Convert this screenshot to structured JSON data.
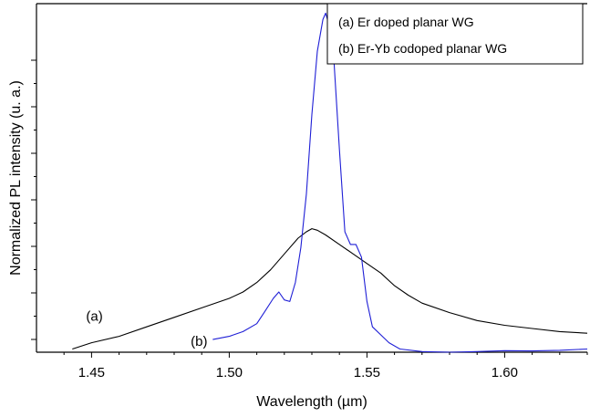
{
  "chart_data": {
    "type": "line",
    "title": "",
    "xlabel": "Wavelength (µm)",
    "ylabel": "Normalized PL intensity (u. a.)",
    "xlim": [
      1.43,
      1.63
    ],
    "ylim": [
      0,
      1.1
    ],
    "x_ticks": [
      1.45,
      1.5,
      1.55,
      1.6
    ],
    "x_tick_labels": [
      "1.45",
      "1.50",
      "1.55",
      "1.60"
    ],
    "y_tick_count": 7,
    "y_tick_labels_shown": false,
    "grid": false,
    "legend_position": "top-right",
    "legend": [
      "(a)  Er doped planar WG",
      "(b)  Er-Yb codoped planar WG"
    ],
    "annotations": [
      {
        "text": "(a)",
        "x": 1.448,
        "y": 0.1
      },
      {
        "text": "(b)",
        "x": 1.486,
        "y": 0.02
      }
    ],
    "series": [
      {
        "color": "#000000",
        "x": [
          1.443,
          1.45,
          1.46,
          1.47,
          1.48,
          1.49,
          1.5,
          1.505,
          1.51,
          1.515,
          1.52,
          1.525,
          1.528,
          1.53,
          1.532,
          1.535,
          1.54,
          1.545,
          1.55,
          1.555,
          1.56,
          1.565,
          1.57,
          1.58,
          1.59,
          1.6,
          1.61,
          1.62,
          1.63
        ],
        "y": [
          0.01,
          0.03,
          0.05,
          0.08,
          0.11,
          0.14,
          0.17,
          0.19,
          0.22,
          0.26,
          0.31,
          0.36,
          0.38,
          0.39,
          0.385,
          0.37,
          0.34,
          0.31,
          0.28,
          0.25,
          0.21,
          0.18,
          0.155,
          0.125,
          0.1,
          0.085,
          0.075,
          0.065,
          0.06
        ]
      },
      {
        "color": "#1f1fd6",
        "x": [
          1.494,
          1.5,
          1.505,
          1.51,
          1.513,
          1.516,
          1.518,
          1.52,
          1.522,
          1.524,
          1.526,
          1.528,
          1.53,
          1.532,
          1.534,
          1.535,
          1.536,
          1.538,
          1.54,
          1.542,
          1.544,
          1.546,
          1.548,
          1.55,
          1.552,
          1.555,
          1.558,
          1.562,
          1.57,
          1.58,
          1.59,
          1.6,
          1.61,
          1.62,
          1.63
        ],
        "y": [
          0.04,
          0.05,
          0.065,
          0.09,
          0.13,
          0.17,
          0.19,
          0.165,
          0.16,
          0.22,
          0.33,
          0.5,
          0.75,
          0.95,
          1.05,
          1.07,
          1.04,
          0.92,
          0.64,
          0.38,
          0.34,
          0.34,
          0.3,
          0.16,
          0.08,
          0.055,
          0.03,
          0.01,
          0.002,
          0.0,
          0.002,
          0.005,
          0.004,
          0.006,
          0.01
        ]
      }
    ]
  }
}
